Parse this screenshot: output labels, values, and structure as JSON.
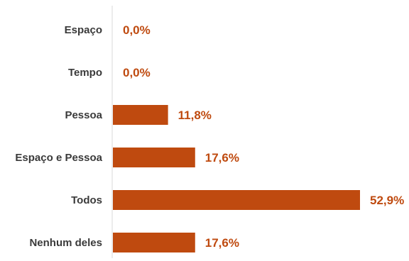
{
  "chart_data": {
    "type": "bar",
    "orientation": "horizontal",
    "categories": [
      "Espaço",
      "Tempo",
      "Pessoa",
      "Espaço e Pessoa",
      "Todos",
      "Nenhum deles"
    ],
    "values": [
      0.0,
      0.0,
      11.8,
      17.6,
      52.9,
      17.6
    ],
    "value_labels": [
      "0,0%",
      "0,0%",
      "11,8%",
      "17,6%",
      "52,9%",
      "17,6%"
    ],
    "xlim": [
      0,
      52.9
    ],
    "grid": false,
    "legend": "none",
    "colors": {
      "bar": "#bf4a0f",
      "value_text": "#bf4a0f",
      "axis": "#d9d9d9"
    }
  }
}
